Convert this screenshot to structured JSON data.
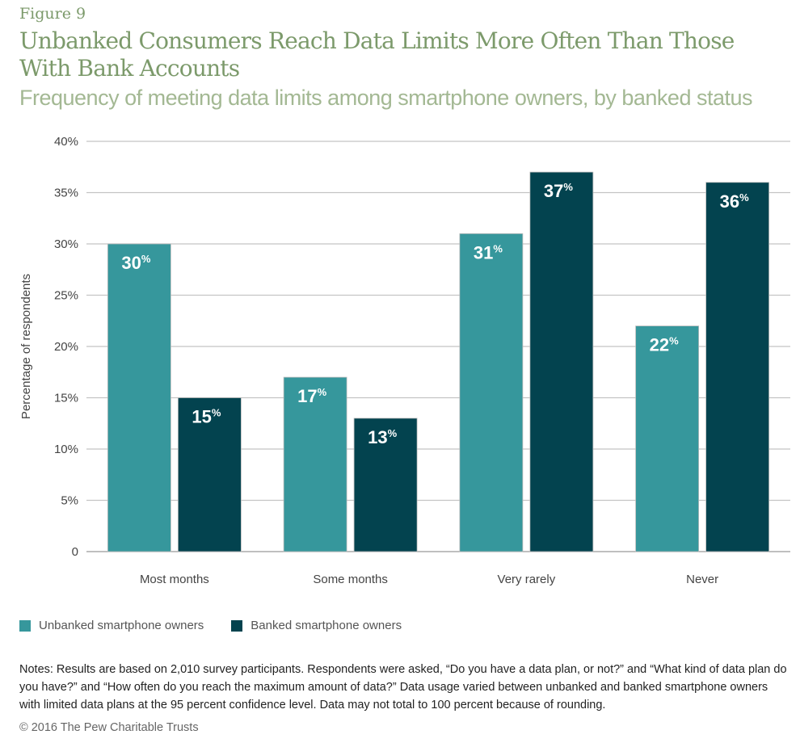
{
  "figure_label": "Figure 9",
  "title": "Unbanked Consumers Reach Data Limits More Often Than Those With Bank Accounts",
  "subtitle": "Frequency of meeting data limits among smartphone owners, by banked status",
  "chart_data": {
    "type": "bar",
    "categories": [
      "Most months",
      "Some months",
      "Very rarely",
      "Never"
    ],
    "series": [
      {
        "name": "Unbanked smartphone owners",
        "values": [
          30,
          17,
          31,
          22
        ],
        "color": "#36979c"
      },
      {
        "name": "Banked smartphone owners",
        "values": [
          15,
          13,
          37,
          36
        ],
        "color": "#03434f"
      }
    ],
    "ylabel": "Percentage of respondents",
    "ylim": [
      0,
      40
    ],
    "yticks": [
      "0",
      "5%",
      "10%",
      "15%",
      "20%",
      "25%",
      "30%",
      "35%",
      "40%"
    ],
    "grid": true,
    "legend": "bottom-left",
    "data_label_suffix": "%"
  },
  "notes": "Notes: Results are based on 2,010 survey participants. Respondents were asked, “Do you have a data plan, or not?” and “What kind of data plan do you have?” and “How often do you reach the maximum amount of data?” Data usage varied between unbanked and banked smartphone owners with limited data plans at the 95 percent confidence level. Data may not total to 100 percent because of rounding.",
  "copyright": "© 2016 The Pew Charitable Trusts"
}
